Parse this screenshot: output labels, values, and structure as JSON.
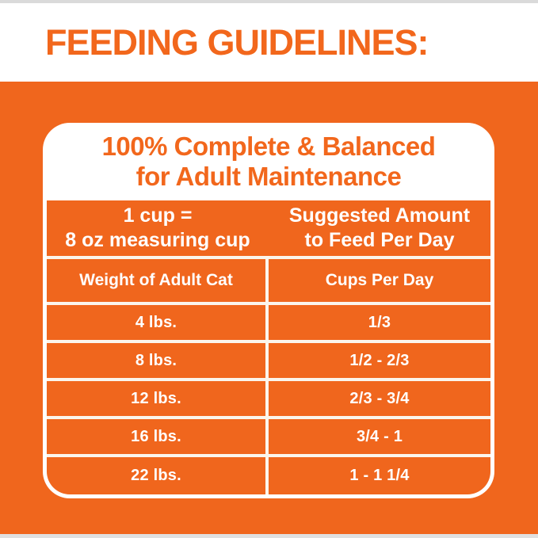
{
  "page": {
    "title": "FEEDING GUIDELINES:"
  },
  "card": {
    "header": {
      "line1": "100% Complete & Balanced",
      "line2": "for Adult Maintenance"
    },
    "band": {
      "left_line1": "1 cup =",
      "left_line2": "8 oz measuring cup",
      "right_line1": "Suggested Amount",
      "right_line2": "to Feed Per Day"
    }
  },
  "table": {
    "columns": [
      "Weight of Adult Cat",
      "Cups Per Day"
    ],
    "rows": [
      [
        "4 lbs.",
        "1/3"
      ],
      [
        "8 lbs.",
        "1/2 - 2/3"
      ],
      [
        "12 lbs.",
        "2/3 - 3/4"
      ],
      [
        "16 lbs.",
        "3/4 - 1"
      ],
      [
        "22 lbs.",
        "1 - 1 1/4"
      ]
    ]
  },
  "colors": {
    "brand_orange": "#F0661D",
    "accent_text_orange": "#F2671C",
    "grid_line": "#FBF5EC",
    "edge_strip_gray": "#DADADA"
  }
}
